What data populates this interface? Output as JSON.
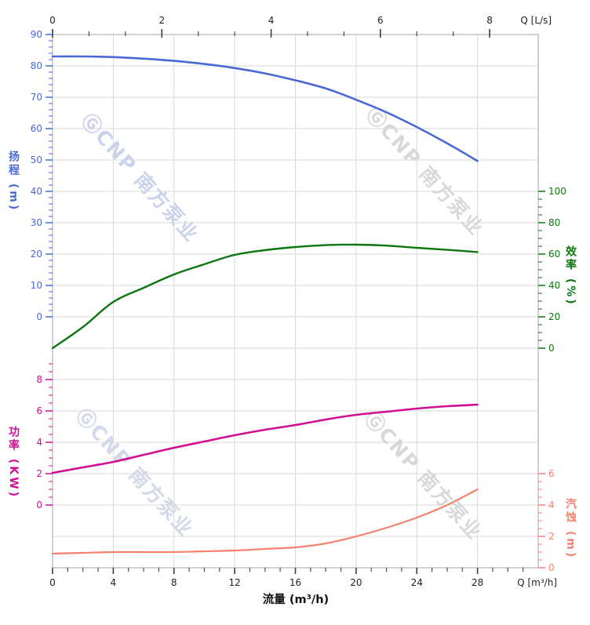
{
  "watermark": {
    "text": "ⒼCNP 南方泵业"
  },
  "chart_data": {
    "type": "line",
    "title": "",
    "x_axis_bottom": {
      "label": "流量 (m³/h)",
      "corner_label": "Q [m³/h]",
      "unit": "m³/h",
      "range": [
        0,
        32
      ],
      "major_ticks": [
        0,
        4,
        8,
        12,
        16,
        20,
        24,
        28
      ],
      "minor_step": 1
    },
    "x_axis_top": {
      "corner_label": "Q [L/s]",
      "unit": "L/s",
      "range": [
        0,
        8.9
      ],
      "major_ticks": [
        0,
        2,
        4,
        6,
        8
      ],
      "minors_between_majors": 2
    },
    "y_axes": {
      "head": {
        "label": "扬程 (m)",
        "color": "#4a69d7",
        "major_ticks": [
          90,
          80,
          70,
          60,
          50,
          40,
          30,
          20,
          10,
          0
        ],
        "minor_step": 2
      },
      "efficiency": {
        "label": "效率 (%)",
        "color": "#0c7610",
        "major_ticks": [
          100,
          80,
          60,
          40,
          20,
          0
        ],
        "minor_step": 5
      },
      "power": {
        "label": "功率 (KW)",
        "color": "#d00f92",
        "major_ticks": [
          8,
          6,
          4,
          2,
          0
        ],
        "minor_step": 0.5
      },
      "npsh": {
        "label": "汽蚀 (m)",
        "color": "#f7816f",
        "major_ticks": [
          6,
          4,
          2,
          0
        ],
        "minor_step": 0.5
      }
    },
    "series": [
      {
        "name": "head",
        "axis": "head",
        "color": "#4a69d7",
        "x": [
          0,
          2,
          4,
          6,
          8,
          10,
          12,
          14,
          16,
          18,
          20,
          22,
          24,
          26,
          28
        ],
        "y": [
          83,
          83,
          82.8,
          82.3,
          81.6,
          80.6,
          79.3,
          77.6,
          75.4,
          72.8,
          69.2,
          65.2,
          60.5,
          55.3,
          49.7
        ]
      },
      {
        "name": "efficiency",
        "axis": "efficiency",
        "color": "#0c7610",
        "x": [
          0,
          2,
          4,
          6,
          8,
          10,
          12,
          14,
          16,
          18,
          20,
          22,
          24,
          26,
          28
        ],
        "y": [
          0,
          13.5,
          29.5,
          38.5,
          47,
          53.5,
          59.5,
          62.5,
          64.5,
          65.7,
          66,
          65.4,
          64,
          62.7,
          61.3
        ]
      },
      {
        "name": "power",
        "axis": "power",
        "color": "#d00f92",
        "x": [
          0,
          2,
          4,
          6,
          8,
          10,
          12,
          14,
          16,
          18,
          20,
          22,
          24,
          26,
          28
        ],
        "y": [
          2.05,
          2.4,
          2.75,
          3.2,
          3.65,
          4.05,
          4.45,
          4.8,
          5.1,
          5.45,
          5.75,
          5.95,
          6.15,
          6.3,
          6.4
        ]
      },
      {
        "name": "npsh",
        "axis": "npsh",
        "color": "#f7816f",
        "x": [
          0,
          2,
          4,
          6,
          8,
          10,
          12,
          14,
          16,
          18,
          20,
          22,
          24,
          26,
          28
        ],
        "y": [
          0.9,
          0.95,
          1,
          1,
          1,
          1.05,
          1.1,
          1.2,
          1.3,
          1.55,
          2,
          2.55,
          3.2,
          4,
          5
        ]
      }
    ]
  }
}
